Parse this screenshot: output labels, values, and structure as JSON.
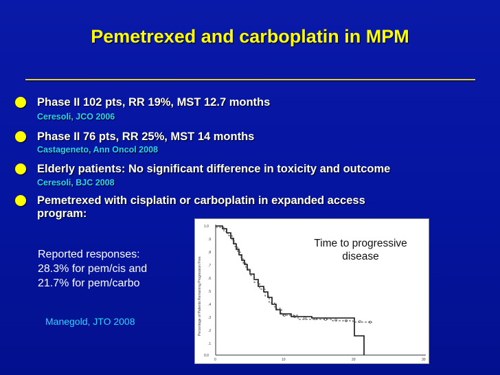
{
  "slide": {
    "title": "Pemetrexed and carboplatin in MPM",
    "colors": {
      "background": "#0515a0",
      "title": "#ffff00",
      "body_text": "#ffffff",
      "citation": "#28d6ff"
    }
  },
  "bullets": [
    {
      "text": "Phase II 102 pts, RR 19%, MST 12.7 months",
      "citation": "Ceresoli, JCO 2006"
    },
    {
      "text": "Phase II 76 pts, RR 25%, MST 14 months",
      "citation": "Castageneto, Ann Oncol 2008"
    },
    {
      "text": "Elderly patients: No significant difference in toxicity and outcome",
      "citation": "Ceresoli, BJC 2008"
    },
    {
      "text_line1": "Pemetrexed with cisplatin or carboplatin in expanded access",
      "text_line2": "program:"
    }
  ],
  "responses": {
    "line1": "Reported responses:",
    "line2": "28.3% for pem/cis and",
    "line3": "21.7% for pem/carbo"
  },
  "reference": "Manegold, JTO 2008",
  "plot": {
    "caption_line1": "Time to progressive",
    "caption_line2": "disease",
    "y_axis_label": "Percentage of Patients Remaining Progression Free",
    "y_ticks": [
      "1.0",
      ".9",
      ".8",
      ".7",
      ".6",
      ".5",
      ".4",
      ".3",
      ".2",
      ".1",
      "0.0"
    ],
    "x_ticks": [
      "0",
      "10",
      "20",
      "30"
    ]
  }
}
